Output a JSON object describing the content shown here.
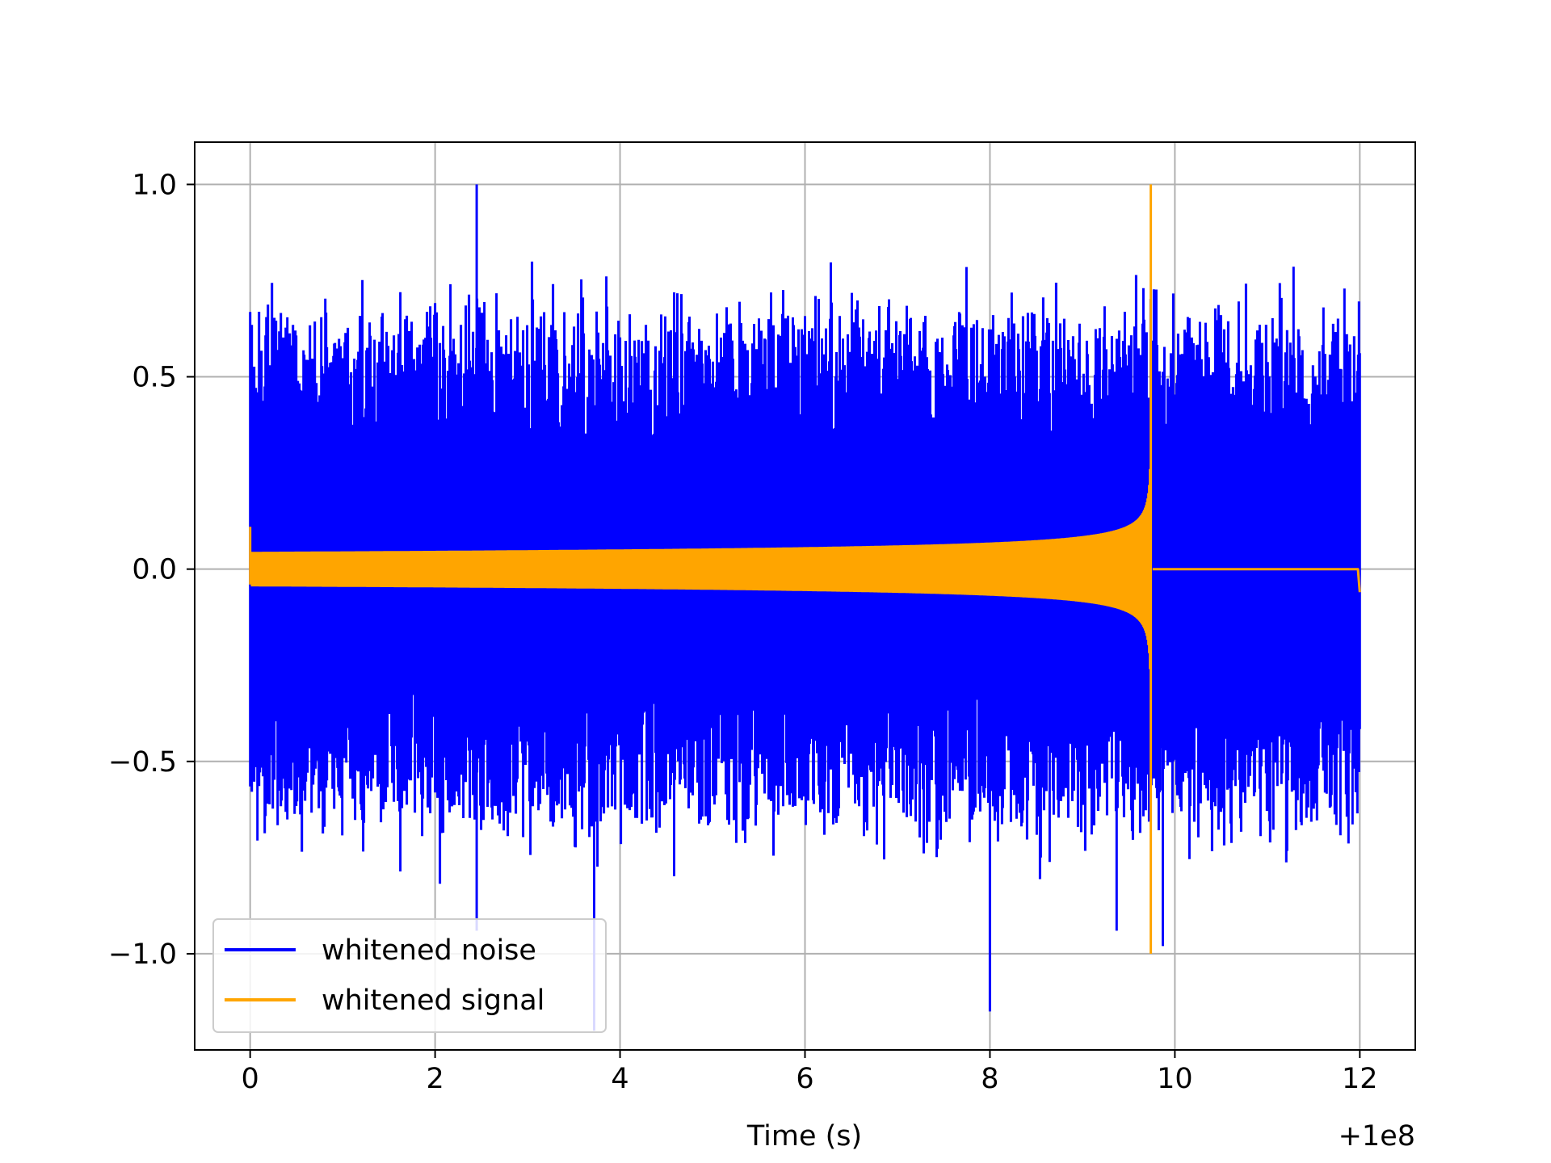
{
  "chart_data": {
    "type": "line",
    "title": "",
    "xlabel": "Time (s)",
    "ylabel": "",
    "x_offset_label": "+1e8",
    "xlim": [
      -0.6,
      12.6
    ],
    "ylim": [
      -1.25,
      1.11
    ],
    "grid": true,
    "legend_position": "lower-left",
    "x_ticks": [
      0,
      2,
      4,
      6,
      8,
      10,
      12
    ],
    "x_tick_labels": [
      "0",
      "2",
      "4",
      "6",
      "8",
      "10",
      "12"
    ],
    "y_ticks": [
      1.0,
      0.5,
      0.0,
      -0.5,
      -1.0
    ],
    "y_tick_labels": [
      "1.0",
      "0.5",
      "0.0",
      "−0.5",
      "−1.0"
    ],
    "series": [
      {
        "name": "whitened noise",
        "color": "#0000ff",
        "x_range": [
          0,
          12.0
        ],
        "typical_envelope": [
          -0.55,
          0.55
        ],
        "spikes": [
          {
            "x": 2.45,
            "y": 1.0
          },
          {
            "x": 3.72,
            "y": -1.2
          },
          {
            "x": 8.0,
            "y": -1.15
          },
          {
            "x": 2.45,
            "y": -0.94
          },
          {
            "x": 9.37,
            "y": -0.94
          },
          {
            "x": 9.87,
            "y": -0.98
          }
        ]
      },
      {
        "name": "whitened signal",
        "color": "#ffa500",
        "x_range": [
          0,
          12.0
        ],
        "chirp_end": 9.74,
        "amplitude_start": 0.045,
        "amplitude_peak": 1.0,
        "post_chirp_value": 0.0,
        "initial_spike": 0.11,
        "final_value": -0.06
      }
    ]
  }
}
